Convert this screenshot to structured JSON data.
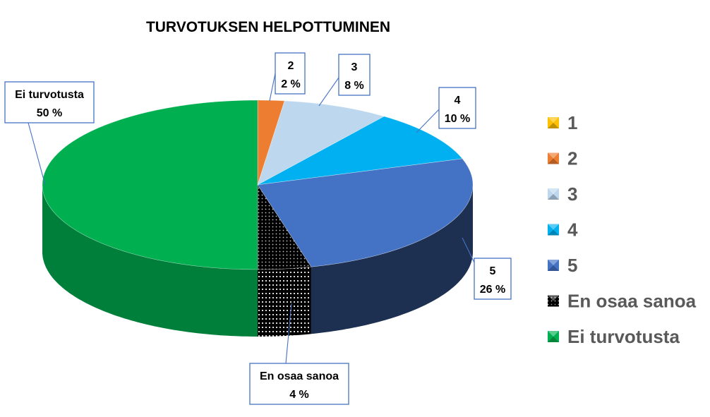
{
  "chart_data": {
    "type": "pie",
    "style": "3d",
    "title": "TURVOTUKSEN HELPOTTUMINEN",
    "legend_position": "right",
    "slices": [
      {
        "name": "1",
        "value": 0,
        "color": "#ffc000"
      },
      {
        "name": "2",
        "value": 2,
        "color": "#ed7d31",
        "label": "2",
        "value_label": "2 %"
      },
      {
        "name": "3",
        "value": 8,
        "color": "#bdd7ee",
        "label": "3",
        "value_label": "8 %"
      },
      {
        "name": "4",
        "value": 10,
        "color": "#00b0f0",
        "label": "4",
        "value_label": "10 %"
      },
      {
        "name": "5",
        "value": 26,
        "color": "#4472c4",
        "label": "5",
        "value_label": "26 %"
      },
      {
        "name": "En osaa sanoa",
        "value": 4,
        "color": "#000000",
        "pattern": "dotted",
        "label": "En osaa sanoa",
        "value_label": "4 %"
      },
      {
        "name": "Ei turvotusta",
        "value": 50,
        "color": "#00b050",
        "label": "Ei turvotusta",
        "value_label": "50 %"
      }
    ]
  }
}
